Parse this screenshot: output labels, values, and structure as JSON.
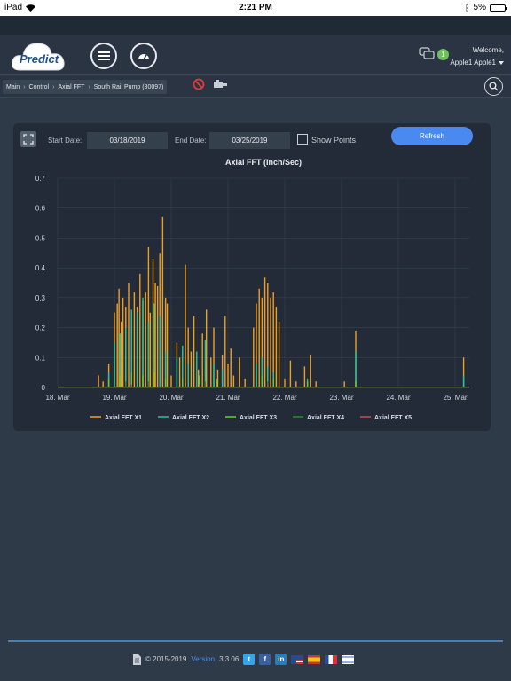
{
  "status_bar": {
    "device": "iPad",
    "time": "2:21 PM",
    "battery": "5%"
  },
  "header": {
    "logo_text": "Predict",
    "message_count": "1",
    "welcome": "Welcome,",
    "user_name": "Apple1 Apple1"
  },
  "breadcrumb": {
    "items": [
      "Main",
      "Control",
      "Axial FFT",
      "South Rail Pump (30097)"
    ]
  },
  "filters": {
    "start_label": "Start Date:",
    "start_value": "03/18/2019",
    "end_label": "End Date:",
    "end_value": "03/25/2019",
    "show_points_label": "Show Points",
    "show_points_checked": false,
    "refresh_label": "Refresh"
  },
  "footer": {
    "copyright": "© 2015-2019",
    "version_label": "Version",
    "version": "3.3.06"
  },
  "colors": {
    "x1": "#f0a020",
    "x2": "#1fc8a0",
    "x3": "#66cc33",
    "x4": "#2e8b2e",
    "x5": "#c85050",
    "accent": "#4a8af0"
  },
  "chart_data": {
    "type": "area",
    "title": "Axial FFT (Inch/Sec)",
    "x_ticks": [
      "18. Mar",
      "19. Mar",
      "20. Mar",
      "21. Mar",
      "22. Mar",
      "23. Mar",
      "24. Mar",
      "25. Mar"
    ],
    "y_ticks": [
      "0",
      "0.1",
      "0.2",
      "0.3",
      "0.4",
      "0.5",
      "0.6",
      "0.7"
    ],
    "ylim": [
      0,
      0.7
    ],
    "xlim_days": [
      18,
      25.25
    ],
    "grid": true,
    "legend_position": "bottom",
    "series": [
      {
        "name": "Axial FFT X1",
        "color": "#f0a020",
        "points": [
          [
            18.72,
            0.04
          ],
          [
            18.8,
            0.02
          ],
          [
            18.9,
            0.08
          ],
          [
            19.0,
            0.25
          ],
          [
            19.05,
            0.28
          ],
          [
            19.08,
            0.33
          ],
          [
            19.12,
            0.22
          ],
          [
            19.15,
            0.3
          ],
          [
            19.2,
            0.27
          ],
          [
            19.25,
            0.35
          ],
          [
            19.3,
            0.25
          ],
          [
            19.35,
            0.32
          ],
          [
            19.4,
            0.27
          ],
          [
            19.45,
            0.38
          ],
          [
            19.5,
            0.29
          ],
          [
            19.55,
            0.32
          ],
          [
            19.6,
            0.47
          ],
          [
            19.63,
            0.25
          ],
          [
            19.68,
            0.43
          ],
          [
            19.72,
            0.35
          ],
          [
            19.76,
            0.34
          ],
          [
            19.8,
            0.45
          ],
          [
            19.85,
            0.57
          ],
          [
            19.9,
            0.3
          ],
          [
            19.93,
            0.28
          ],
          [
            20.0,
            0.04
          ],
          [
            20.1,
            0.15
          ],
          [
            20.15,
            0.1
          ],
          [
            20.2,
            0.12
          ],
          [
            20.25,
            0.41
          ],
          [
            20.3,
            0.2
          ],
          [
            20.35,
            0.12
          ],
          [
            20.4,
            0.24
          ],
          [
            20.48,
            0.06
          ],
          [
            20.55,
            0.18
          ],
          [
            20.62,
            0.26
          ],
          [
            20.7,
            0.1
          ],
          [
            20.75,
            0.2
          ],
          [
            20.82,
            0.06
          ],
          [
            20.9,
            0.11
          ],
          [
            20.95,
            0.24
          ],
          [
            21.0,
            0.08
          ],
          [
            21.05,
            0.13
          ],
          [
            21.1,
            0.04
          ],
          [
            21.2,
            0.1
          ],
          [
            21.3,
            0.03
          ],
          [
            21.45,
            0.2
          ],
          [
            21.5,
            0.28
          ],
          [
            21.55,
            0.33
          ],
          [
            21.6,
            0.3
          ],
          [
            21.65,
            0.37
          ],
          [
            21.7,
            0.35
          ],
          [
            21.75,
            0.3
          ],
          [
            21.8,
            0.32
          ],
          [
            21.85,
            0.27
          ],
          [
            21.9,
            0.22
          ],
          [
            22.0,
            0.03
          ],
          [
            22.1,
            0.09
          ],
          [
            22.2,
            0.02
          ],
          [
            22.35,
            0.07
          ],
          [
            22.45,
            0.11
          ],
          [
            22.55,
            0.02
          ],
          [
            23.05,
            0.02
          ],
          [
            23.25,
            0.19
          ],
          [
            25.15,
            0.1
          ]
        ]
      },
      {
        "name": "Axial FFT X2",
        "color": "#1fc8a0",
        "points": [
          [
            18.9,
            0.05
          ],
          [
            19.0,
            0.15
          ],
          [
            19.1,
            0.18
          ],
          [
            19.2,
            0.2
          ],
          [
            19.3,
            0.26
          ],
          [
            19.4,
            0.25
          ],
          [
            19.5,
            0.3
          ],
          [
            19.6,
            0.22
          ],
          [
            19.7,
            0.28
          ],
          [
            19.8,
            0.24
          ],
          [
            19.9,
            0.12
          ],
          [
            20.1,
            0.1
          ],
          [
            20.2,
            0.14
          ],
          [
            20.3,
            0.08
          ],
          [
            20.45,
            0.12
          ],
          [
            20.6,
            0.16
          ],
          [
            20.75,
            0.08
          ],
          [
            20.9,
            0.06
          ],
          [
            21.5,
            0.08
          ],
          [
            21.6,
            0.1
          ],
          [
            21.7,
            0.07
          ],
          [
            21.8,
            0.05
          ],
          [
            22.4,
            0.03
          ],
          [
            23.25,
            0.12
          ],
          [
            25.15,
            0.04
          ]
        ]
      },
      {
        "name": "Axial FFT X3",
        "color": "#66cc33",
        "points": [
          [
            18.9,
            0.03
          ],
          [
            19.1,
            0.04
          ],
          [
            19.3,
            0.05
          ],
          [
            19.5,
            0.04
          ],
          [
            19.7,
            0.05
          ],
          [
            19.9,
            0.03
          ],
          [
            20.2,
            0.03
          ],
          [
            20.5,
            0.04
          ],
          [
            20.8,
            0.03
          ],
          [
            21.6,
            0.04
          ],
          [
            21.8,
            0.03
          ],
          [
            22.4,
            0.02
          ],
          [
            23.25,
            0.02
          ]
        ]
      },
      {
        "name": "Axial FFT X4",
        "color": "#2e8b2e",
        "points": [
          [
            19.2,
            0.02
          ],
          [
            19.6,
            0.02
          ],
          [
            20.6,
            0.02
          ],
          [
            21.7,
            0.02
          ]
        ]
      },
      {
        "name": "Axial FFT X5",
        "color": "#c85050",
        "points": [
          [
            19.3,
            0.01
          ],
          [
            20.5,
            0.01
          ],
          [
            21.7,
            0.01
          ]
        ]
      }
    ]
  },
  "icons": {
    "menu": "hamburger-icon",
    "dashboard": "gauge-icon",
    "messages": "chat-icon",
    "search": "search-icon",
    "disabled": "no-entry-icon",
    "asset": "pump-icon"
  }
}
